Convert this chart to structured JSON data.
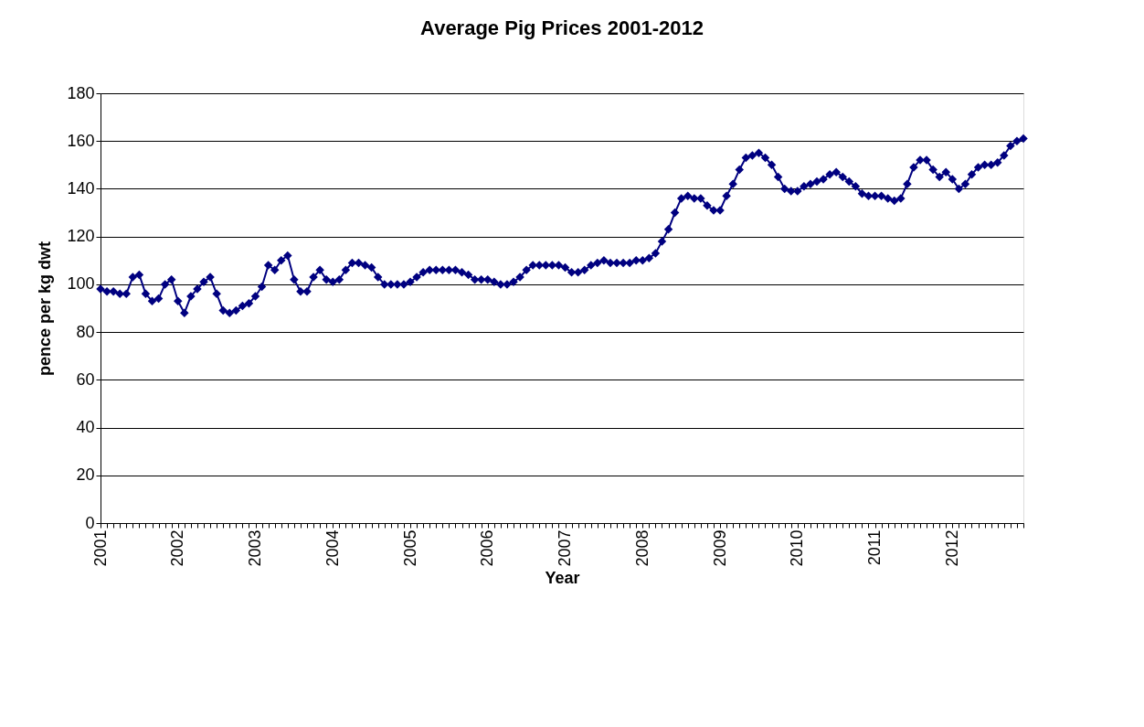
{
  "chart_data": {
    "type": "line",
    "title": "Average Pig Prices 2001-2012",
    "xlabel": "Year",
    "ylabel": "pence per kg dwt",
    "categories": [
      "2001",
      null,
      null,
      null,
      null,
      null,
      null,
      null,
      null,
      null,
      null,
      null,
      "2002",
      null,
      null,
      null,
      null,
      null,
      null,
      null,
      null,
      null,
      null,
      null,
      "2003",
      null,
      null,
      null,
      null,
      null,
      null,
      null,
      null,
      null,
      null,
      null,
      "2004",
      null,
      null,
      null,
      null,
      null,
      null,
      null,
      null,
      null,
      null,
      null,
      "2005",
      null,
      null,
      null,
      null,
      null,
      null,
      null,
      null,
      null,
      null,
      null,
      "2006",
      null,
      null,
      null,
      null,
      null,
      null,
      null,
      null,
      null,
      null,
      null,
      "2007",
      null,
      null,
      null,
      null,
      null,
      null,
      null,
      null,
      null,
      null,
      null,
      "2008",
      null,
      null,
      null,
      null,
      null,
      null,
      null,
      null,
      null,
      null,
      null,
      "2009",
      null,
      null,
      null,
      null,
      null,
      null,
      null,
      null,
      null,
      null,
      null,
      "2010",
      null,
      null,
      null,
      null,
      null,
      null,
      null,
      null,
      null,
      null,
      null,
      "2011",
      null,
      null,
      null,
      null,
      null,
      null,
      null,
      null,
      null,
      null,
      null,
      "2012",
      null,
      null,
      null,
      null,
      null,
      null,
      null,
      null,
      null,
      null,
      null
    ],
    "series": [
      {
        "color": "#000080",
        "values": [
          98,
          97,
          97,
          96,
          96,
          103,
          104,
          96,
          93,
          94,
          100,
          102,
          93,
          88,
          95,
          98,
          101,
          103,
          96,
          89,
          88,
          89,
          91,
          92,
          95,
          99,
          108,
          106,
          110,
          112,
          102,
          97,
          97,
          103,
          106,
          102,
          101,
          102,
          106,
          109,
          109,
          108,
          107,
          103,
          100,
          100,
          100,
          100,
          101,
          103,
          105,
          106,
          106,
          106,
          106,
          106,
          105,
          104,
          102,
          102,
          102,
          101,
          100,
          100,
          101,
          103,
          106,
          108,
          108,
          108,
          108,
          108,
          107,
          105,
          105,
          106,
          108,
          109,
          110,
          109,
          109,
          109,
          109,
          110,
          110,
          111,
          113,
          118,
          123,
          130,
          136,
          137,
          136,
          136,
          133,
          131,
          131,
          137,
          142,
          148,
          153,
          154,
          155,
          153,
          150,
          145,
          140,
          139,
          139,
          141,
          142,
          143,
          144,
          146,
          147,
          145,
          143,
          141,
          138,
          137,
          137,
          137,
          136,
          135,
          136,
          142,
          149,
          152,
          152,
          148,
          145,
          147,
          144,
          140,
          142,
          146,
          149,
          150,
          150,
          151,
          154,
          158,
          160,
          161
        ]
      }
    ],
    "ylim": [
      0,
      180
    ],
    "yticks": [
      0,
      20,
      40,
      60,
      80,
      100,
      120,
      140,
      160,
      180
    ],
    "grid": "y",
    "marker": "diamond",
    "line_style": "solid"
  }
}
